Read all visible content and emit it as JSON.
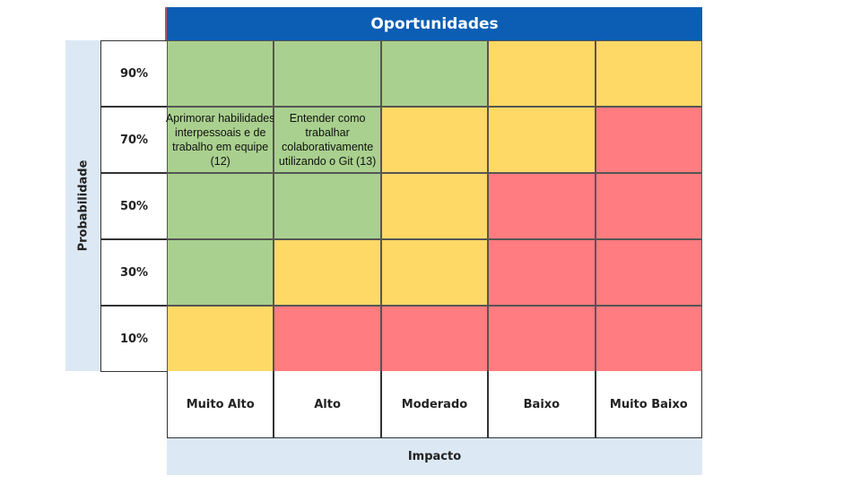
{
  "title": "Oportunidades",
  "y_axis_label": "Probabilidade",
  "x_axis_label": "Impacto",
  "rows": [
    "90%",
    "70%",
    "50%",
    "30%",
    "10%"
  ],
  "columns": [
    "Muito Alto",
    "Alto",
    "Moderado",
    "Baixo",
    "Muito Baixo"
  ],
  "colors": {
    "green": "#a9d08e",
    "yellow": "#ffd966",
    "red": "#ff7c80",
    "header": "#0b5eb4",
    "band": "#dce8f4"
  },
  "grid": [
    [
      "green",
      "green",
      "green",
      "yellow",
      "yellow"
    ],
    [
      "green",
      "green",
      "yellow",
      "yellow",
      "red"
    ],
    [
      "green",
      "green",
      "yellow",
      "red",
      "red"
    ],
    [
      "green",
      "yellow",
      "yellow",
      "red",
      "red"
    ],
    [
      "yellow",
      "red",
      "red",
      "red",
      "red"
    ]
  ],
  "cell_texts": [
    [
      "",
      "",
      "",
      "",
      ""
    ],
    [
      "Aprimorar habilidades interpessoais e de trabalho em equipe (12)",
      "Entender como trabalhar colaborativamente utilizando o Git (13)",
      "",
      "",
      ""
    ],
    [
      "",
      "",
      "",
      "",
      ""
    ],
    [
      "",
      "",
      "",
      "",
      ""
    ],
    [
      "",
      "",
      "",
      "",
      ""
    ]
  ]
}
